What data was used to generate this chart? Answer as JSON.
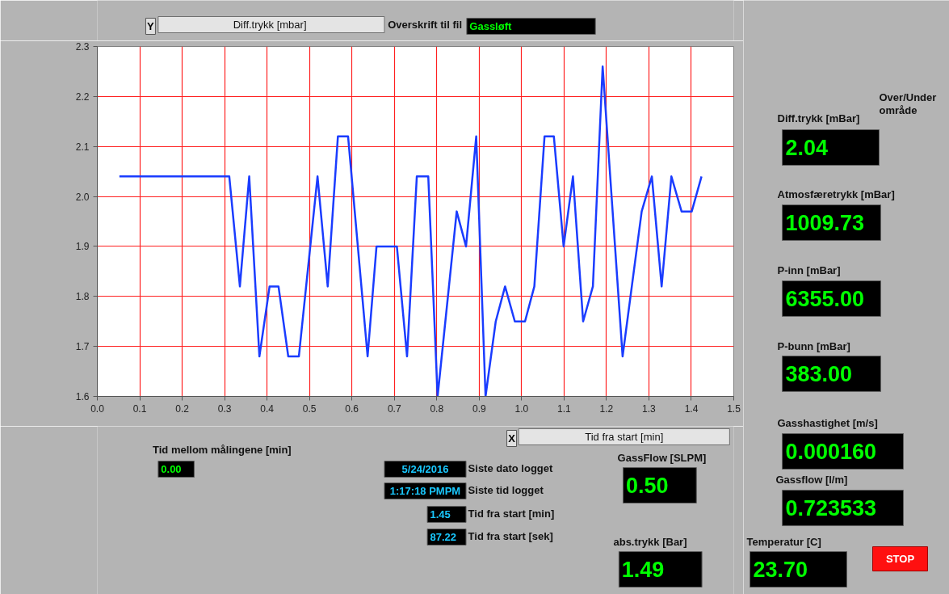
{
  "chart_data": {
    "type": "line",
    "xlabel": "Tid fra start [min]",
    "ylabel": "Diff.trykk  [mbar]",
    "xlim": [
      0,
      1.5
    ],
    "ylim": [
      1.6,
      2.3
    ],
    "xticks": [
      {
        "value": 0,
        "label": "0.0"
      },
      0.1,
      0.2,
      0.3,
      0.4,
      0.5,
      0.6,
      0.7,
      0.8,
      0.9,
      {
        "value": 1,
        "label": "1.0"
      },
      1.1,
      1.2,
      1.3,
      1.4,
      1.5
    ],
    "yticks": [
      1.6,
      1.7,
      1.8,
      1.9,
      {
        "value": 2,
        "label": "2.0"
      },
      2.1,
      2.2,
      2.3
    ],
    "grid": true,
    "series": [
      {
        "color": "#1a3cff",
        "x": [
          0.052,
          0.311,
          0.336,
          0.358,
          0.382,
          0.406,
          0.427,
          0.45,
          0.475,
          0.519,
          0.543,
          0.567,
          0.591,
          0.637,
          0.658,
          0.706,
          0.73,
          0.753,
          0.78,
          0.802,
          0.847,
          0.869,
          0.893,
          0.915,
          0.939,
          0.961,
          0.984,
          1.008,
          1.03,
          1.054,
          1.076,
          1.099,
          1.121,
          1.145,
          1.168,
          1.191,
          1.238,
          1.283,
          1.307,
          1.33,
          1.353,
          1.377,
          1.401,
          1.424
        ],
        "values": [
          2.04,
          2.04,
          1.82,
          2.04,
          1.68,
          1.82,
          1.82,
          1.68,
          1.68,
          2.04,
          1.82,
          2.12,
          2.12,
          1.68,
          1.9,
          1.9,
          1.68,
          2.04,
          2.04,
          1.6,
          1.97,
          1.9,
          2.12,
          1.6,
          1.75,
          1.82,
          1.75,
          1.75,
          1.82,
          2.12,
          2.12,
          1.9,
          2.04,
          1.75,
          1.82,
          2.26,
          1.68,
          1.97,
          2.04,
          1.82,
          2.04,
          1.97,
          1.97,
          2.04
        ]
      }
    ],
    "annotations": [
      "Y",
      "Overskrift til fil",
      "Gassløft",
      "Over/Under område",
      "Diff.trykk [mBar]",
      "2.04",
      "Atmosfæretrykk [mBar]",
      "1009.73",
      "P-inn [mBar]",
      "6355.00",
      "P-bunn [mBar]",
      "383.00",
      "Gasshastighet [m/s]",
      "0.000160",
      "Gassflow [l/m]",
      "0.723533",
      "Tid mellom målingene [min]",
      "0.00",
      "5/24/2016",
      "Siste dato logget",
      "1:17:18 PMPM",
      "Siste tid logget",
      "1.45",
      "Tid fra start [min]",
      "87.22",
      "Tid fra start [sek]",
      "GassFlow [SLPM]",
      "0.50",
      "abs.trykk  [Bar]",
      "1.49",
      "Temperatur [C]",
      "23.70",
      "STOP",
      "X"
    ]
  }
}
